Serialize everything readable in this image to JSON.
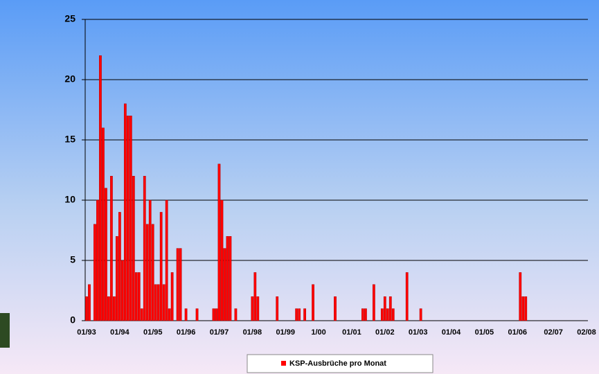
{
  "chart_data": {
    "type": "bar",
    "categories": [
      "01/93",
      null,
      null,
      null,
      null,
      null,
      null,
      null,
      null,
      null,
      null,
      null,
      "01/94",
      null,
      null,
      null,
      null,
      null,
      null,
      null,
      null,
      null,
      null,
      null,
      "01/95",
      null,
      null,
      null,
      null,
      null,
      null,
      null,
      null,
      null,
      null,
      null,
      "01/96",
      null,
      null,
      null,
      null,
      null,
      null,
      null,
      null,
      null,
      null,
      null,
      "01/97",
      null,
      null,
      null,
      null,
      null,
      null,
      null,
      null,
      null,
      null,
      null,
      "01/98",
      null,
      null,
      null,
      null,
      null,
      null,
      null,
      null,
      null,
      null,
      null,
      "01/99",
      null,
      null,
      null,
      null,
      null,
      null,
      null,
      null,
      null,
      null,
      null,
      "1/00",
      null,
      null,
      null,
      null,
      null,
      null,
      null,
      null,
      null,
      null,
      null,
      "01/01",
      null,
      null,
      null,
      null,
      null,
      null,
      null,
      null,
      null,
      null,
      null,
      "01/02",
      null,
      null,
      null,
      null,
      null,
      null,
      null,
      null,
      null,
      null,
      null,
      "01/03",
      null,
      null,
      null,
      null,
      null,
      null,
      null,
      null,
      null,
      null,
      null,
      "01/04",
      null,
      null,
      null,
      null,
      null,
      null,
      null,
      null,
      null,
      null,
      null,
      "01/05",
      null,
      null,
      null,
      null,
      null,
      null,
      null,
      null,
      null,
      null,
      null,
      "01/06",
      null,
      null,
      null,
      null,
      null,
      null,
      null,
      null,
      null,
      null,
      null,
      null,
      "02/07",
      null,
      null,
      null,
      null,
      null,
      null,
      null,
      null,
      null,
      null,
      null,
      "02/08"
    ],
    "series": [
      {
        "name": "KSP-Ausbrüche pro Monat",
        "color": "#ff0000",
        "values": [
          2,
          3,
          0,
          8,
          10,
          22,
          16,
          11,
          2,
          12,
          2,
          7,
          9,
          5,
          18,
          17,
          17,
          12,
          4,
          4,
          1,
          12,
          8,
          10,
          8,
          3,
          3,
          9,
          3,
          10,
          1,
          4,
          0,
          6,
          6,
          0,
          1,
          0,
          0,
          0,
          1,
          0,
          0,
          0,
          0,
          0,
          1,
          1,
          13,
          10,
          6,
          7,
          7,
          0,
          1,
          0,
          0,
          0,
          0,
          0,
          2,
          4,
          2,
          0,
          0,
          0,
          0,
          0,
          0,
          2,
          0,
          0,
          0,
          0,
          0,
          0,
          1,
          1,
          0,
          1,
          0,
          0,
          3,
          0,
          0,
          0,
          0,
          0,
          0,
          0,
          2,
          0,
          0,
          0,
          0,
          0,
          0,
          0,
          0,
          0,
          1,
          1,
          0,
          0,
          3,
          0,
          0,
          1,
          2,
          1,
          2,
          1,
          0,
          0,
          0,
          0,
          4,
          0,
          0,
          0,
          0,
          1,
          0,
          0,
          0,
          0,
          0,
          0,
          0,
          0,
          0,
          0,
          0,
          0,
          0,
          0,
          0,
          0,
          0,
          0,
          0,
          0,
          0,
          0,
          0,
          0,
          0,
          0,
          0,
          0,
          0,
          0,
          0,
          0,
          0,
          0,
          0,
          4,
          2,
          2,
          0,
          0,
          0,
          0,
          0,
          0,
          0,
          0,
          0,
          0,
          0,
          0,
          0,
          0,
          0,
          0,
          0,
          0,
          0,
          0,
          0,
          0
        ]
      }
    ],
    "ylim": [
      0,
      25
    ],
    "yticks": [
      0,
      5,
      10,
      15,
      20,
      25
    ],
    "grid": true,
    "legend": "bottom"
  }
}
